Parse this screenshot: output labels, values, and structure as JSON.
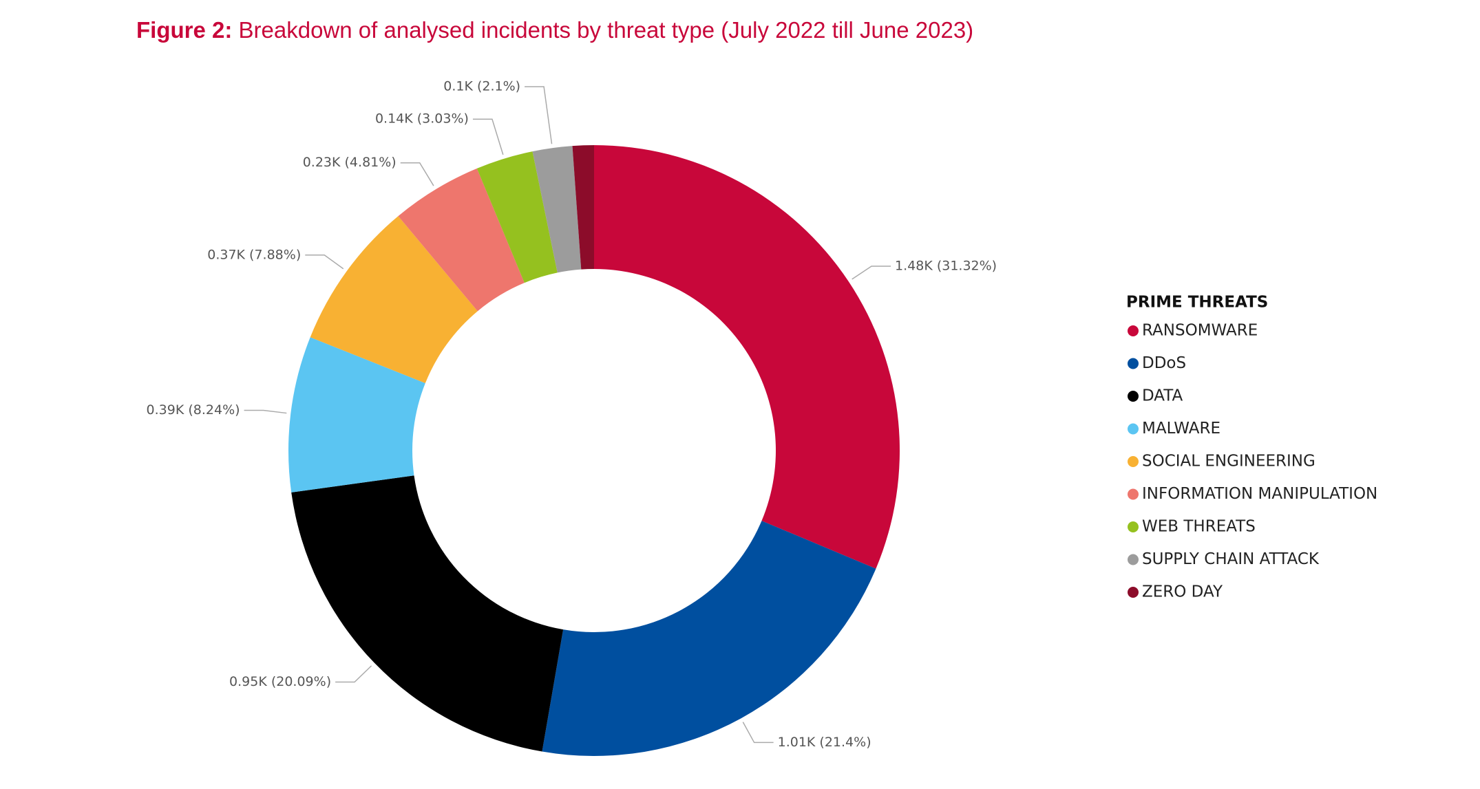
{
  "chart_data": {
    "type": "donut",
    "figure_label": "Figure 2:",
    "title": "Breakdown of analysed incidents by threat type (July 2022 till June 2023)",
    "legend_title": "PRIME THREATS",
    "categories": [
      "RANSOMWARE",
      "DDoS",
      "DATA",
      "MALWARE",
      "SOCIAL ENGINEERING",
      "INFORMATION MANIPULATION",
      "WEB THREATS",
      "SUPPLY CHAIN ATTACK",
      "ZERO DAY"
    ],
    "values": [
      31.32,
      21.4,
      20.09,
      8.24,
      7.88,
      4.81,
      3.03,
      2.1,
      1.13
    ],
    "value_labels": [
      "1.48K (31.32%)",
      "1.01K (21.4%)",
      "0.95K (20.09%)",
      "0.39K (8.24%)",
      "0.37K (7.88%)",
      "0.23K (4.81%)",
      "0.14K (3.03%)",
      "0.1K (2.1%)",
      null
    ],
    "colors": [
      "#c8073a",
      "#004f9f",
      "#000000",
      "#5bc5f2",
      "#f8b133",
      "#ee766d",
      "#95c11f",
      "#9c9c9c",
      "#8c0c2a"
    ],
    "legend_position": "right"
  }
}
